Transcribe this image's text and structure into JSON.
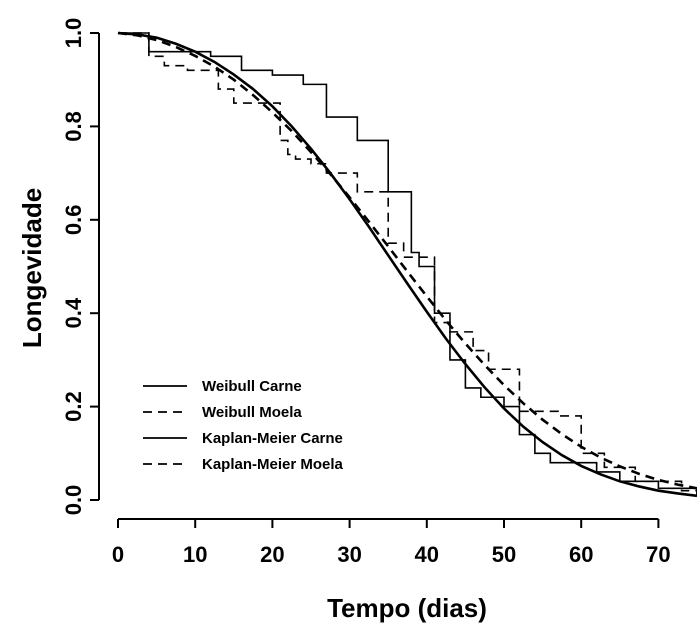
{
  "chart_data": {
    "type": "line",
    "xlabel": "Tempo (dias)",
    "ylabel": "Longevidade",
    "xlim": [
      0,
      75
    ],
    "ylim": [
      0,
      1
    ],
    "x_ticks": [
      0,
      10,
      20,
      30,
      40,
      50,
      60,
      70
    ],
    "y_ticks": [
      0.0,
      0.2,
      0.4,
      0.6,
      0.8,
      1.0
    ],
    "x_tick_labels": [
      "0",
      "10",
      "20",
      "30",
      "40",
      "50",
      "60",
      "70"
    ],
    "y_tick_labels": [
      "0.0",
      "0.2",
      "0.4",
      "0.6",
      "0.8",
      "1.0"
    ],
    "grid": false,
    "legend_position": "bottom-left",
    "series": [
      {
        "name": "Weibull Carne",
        "kind": "curve",
        "dash": "solid",
        "x": [
          0,
          2.5,
          5,
          7.5,
          10,
          12.5,
          15,
          17.5,
          20,
          22.5,
          25,
          27.5,
          30,
          32.5,
          35,
          37.5,
          40,
          42.5,
          45,
          47.5,
          50,
          52.5,
          55,
          57.5,
          60,
          62.5,
          65,
          67.5,
          70,
          72.5,
          75
        ],
        "y": [
          1.0,
          0.997,
          0.99,
          0.977,
          0.96,
          0.938,
          0.911,
          0.88,
          0.843,
          0.8,
          0.752,
          0.7,
          0.644,
          0.585,
          0.524,
          0.463,
          0.403,
          0.345,
          0.291,
          0.241,
          0.196,
          0.157,
          0.124,
          0.096,
          0.073,
          0.055,
          0.04,
          0.029,
          0.02,
          0.014,
          0.009
        ]
      },
      {
        "name": "Weibull Moela",
        "kind": "curve",
        "dash": "dashed",
        "x": [
          0,
          2.5,
          5,
          7.5,
          10,
          12.5,
          15,
          17.5,
          20,
          22.5,
          25,
          27.5,
          30,
          32.5,
          35,
          37.5,
          40,
          42.5,
          45,
          47.5,
          50,
          52.5,
          55,
          57.5,
          60,
          62.5,
          65,
          67.5,
          70,
          72.5,
          75
        ],
        "y": [
          1.0,
          0.995,
          0.985,
          0.97,
          0.951,
          0.928,
          0.9,
          0.867,
          0.83,
          0.79,
          0.745,
          0.698,
          0.648,
          0.596,
          0.543,
          0.489,
          0.436,
          0.384,
          0.335,
          0.289,
          0.246,
          0.207,
          0.172,
          0.141,
          0.114,
          0.091,
          0.072,
          0.056,
          0.043,
          0.033,
          0.025
        ]
      },
      {
        "name": "Kaplan-Meier Carne",
        "kind": "step",
        "dash": "solid",
        "x": [
          0,
          4,
          12,
          16,
          20,
          24,
          27,
          31,
          35,
          38,
          39,
          41,
          43,
          45,
          47,
          50,
          52,
          54,
          56,
          62,
          65,
          70,
          75
        ],
        "y": [
          1.0,
          0.96,
          0.95,
          0.92,
          0.91,
          0.89,
          0.82,
          0.77,
          0.66,
          0.53,
          0.5,
          0.4,
          0.3,
          0.24,
          0.22,
          0.2,
          0.14,
          0.1,
          0.08,
          0.06,
          0.04,
          0.025,
          0.01
        ]
      },
      {
        "name": "Kaplan-Meier Moela",
        "kind": "step",
        "dash": "dashed",
        "x": [
          0,
          4,
          6,
          9,
          13,
          15,
          21,
          22,
          23,
          25,
          27,
          31,
          35,
          37,
          41,
          43,
          46,
          48,
          52,
          57,
          60,
          63,
          67,
          73,
          75
        ],
        "y": [
          1.0,
          0.95,
          0.93,
          0.92,
          0.88,
          0.85,
          0.77,
          0.74,
          0.73,
          0.72,
          0.7,
          0.66,
          0.55,
          0.52,
          0.38,
          0.36,
          0.32,
          0.28,
          0.19,
          0.18,
          0.1,
          0.07,
          0.04,
          0.02,
          0.01
        ]
      }
    ]
  }
}
